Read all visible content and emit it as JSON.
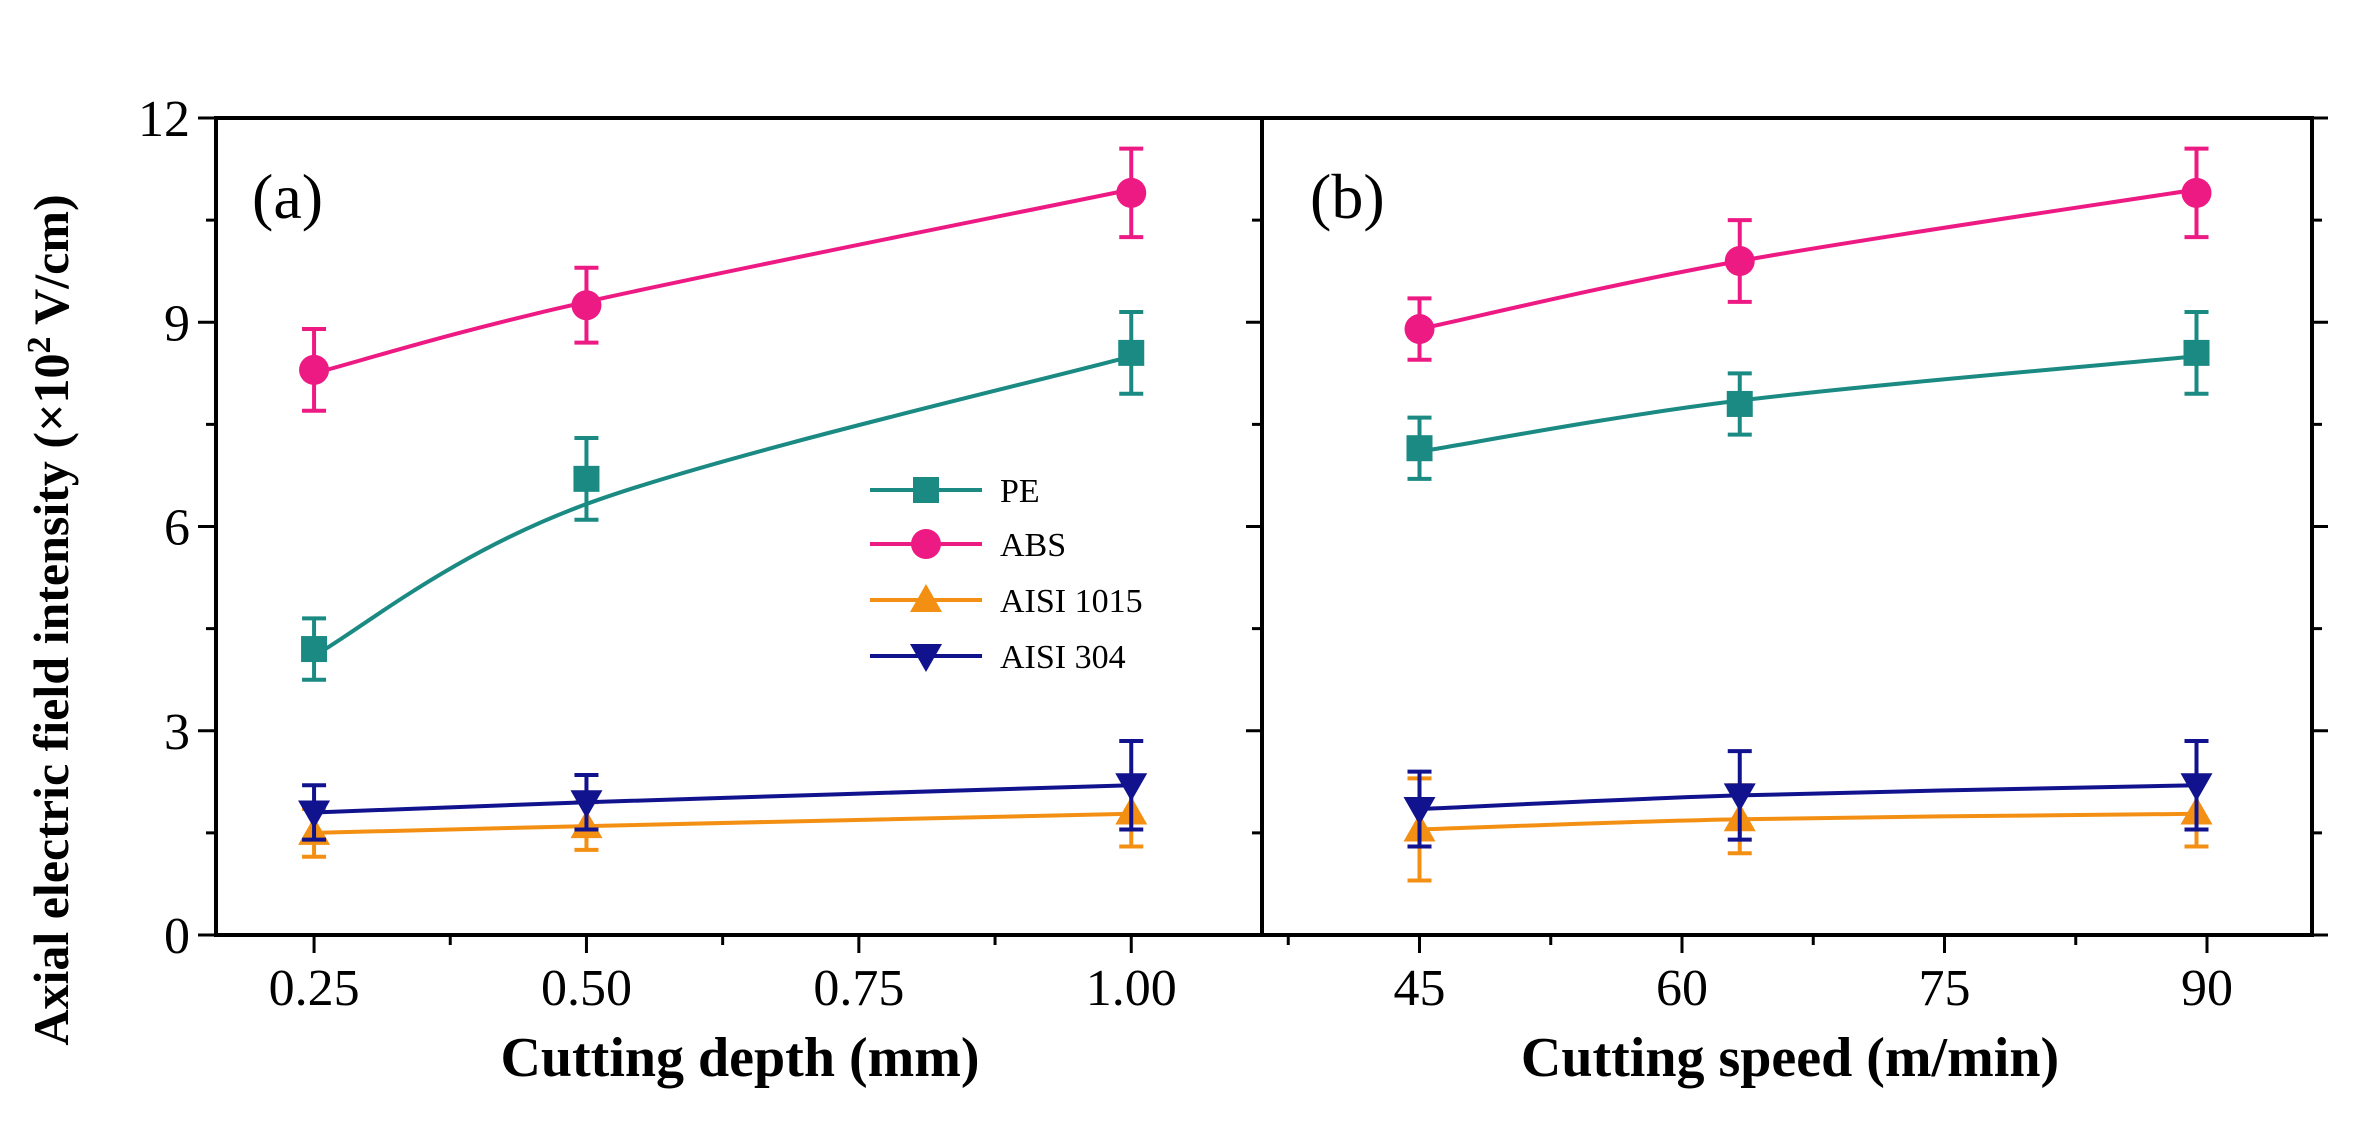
{
  "chart_data": {
    "type": "line",
    "ylabel": "Axial electric field intensity (×10",
    "ylabel_sup": "2",
    "ylabel_unit": " V/cm)",
    "ylim": [
      0,
      12
    ],
    "yticks": [
      0,
      3,
      6,
      9,
      12
    ],
    "ytick_labels": [
      "0",
      "3",
      "6",
      "9",
      "12"
    ],
    "legend": {
      "position": "inside-left-center",
      "entries": [
        {
          "name": "PE",
          "color": "#1a8a83",
          "marker": "square"
        },
        {
          "name": "ABS",
          "color": "#ee1a83",
          "marker": "circle"
        },
        {
          "name": "AISI 1015",
          "color": "#f39014",
          "marker": "triangle-up"
        },
        {
          "name": "AISI 304",
          "color": "#10128e",
          "marker": "triangle-down"
        }
      ]
    },
    "panels": [
      {
        "label": "(a)",
        "xlabel": "Cutting depth (mm)",
        "xlim": [
          0.16,
          1.12
        ],
        "xticks": [
          0.25,
          0.5,
          0.75,
          1.0
        ],
        "xtick_labels": [
          "0.25",
          "0.50",
          "0.75",
          "1.00"
        ],
        "x": [
          0.25,
          0.5,
          1.0
        ],
        "series": [
          {
            "name": "PE",
            "values": [
              4.2,
              6.7,
              8.55
            ],
            "errors": [
              0.45,
              0.6,
              0.6
            ],
            "fit": [
              4.1,
              6.33,
              8.5
            ]
          },
          {
            "name": "ABS",
            "values": [
              8.3,
              9.25,
              10.9
            ],
            "errors": [
              0.6,
              0.55,
              0.65
            ],
            "fit": [
              8.25,
              9.3,
              10.95
            ]
          },
          {
            "name": "AISI 1015",
            "values": [
              1.5,
              1.6,
              1.8
            ],
            "errors": [
              0.35,
              0.35,
              0.5
            ],
            "fit": [
              1.5,
              1.6,
              1.78
            ]
          },
          {
            "name": "AISI 304",
            "values": [
              1.8,
              1.95,
              2.2
            ],
            "errors": [
              0.4,
              0.4,
              0.65
            ],
            "fit": [
              1.8,
              1.95,
              2.2
            ]
          }
        ]
      },
      {
        "label": "(b)",
        "xlabel": "Cutting speed (m/min)",
        "xlim": [
          36,
          96
        ],
        "xticks": [
          45,
          60,
          75,
          90
        ],
        "xtick_labels": [
          "45",
          "60",
          "75",
          "90"
        ],
        "x": [
          45,
          63.3,
          89.4
        ],
        "series": [
          {
            "name": "PE",
            "values": [
              7.15,
              7.8,
              8.55
            ],
            "errors": [
              0.45,
              0.45,
              0.6
            ],
            "fit": [
              7.1,
              7.85,
              8.5
            ]
          },
          {
            "name": "ABS",
            "values": [
              8.9,
              9.9,
              10.9
            ],
            "errors": [
              0.45,
              0.6,
              0.65
            ],
            "fit": [
              8.9,
              9.9,
              10.95
            ]
          },
          {
            "name": "AISI 1015",
            "values": [
              1.55,
              1.7,
              1.8
            ],
            "errors": [
              0.75,
              0.5,
              0.5
            ],
            "fit": [
              1.55,
              1.7,
              1.78
            ]
          },
          {
            "name": "AISI 304",
            "values": [
              1.85,
              2.05,
              2.2
            ],
            "errors": [
              0.55,
              0.65,
              0.65
            ],
            "fit": [
              1.85,
              2.05,
              2.2
            ]
          }
        ]
      }
    ]
  }
}
